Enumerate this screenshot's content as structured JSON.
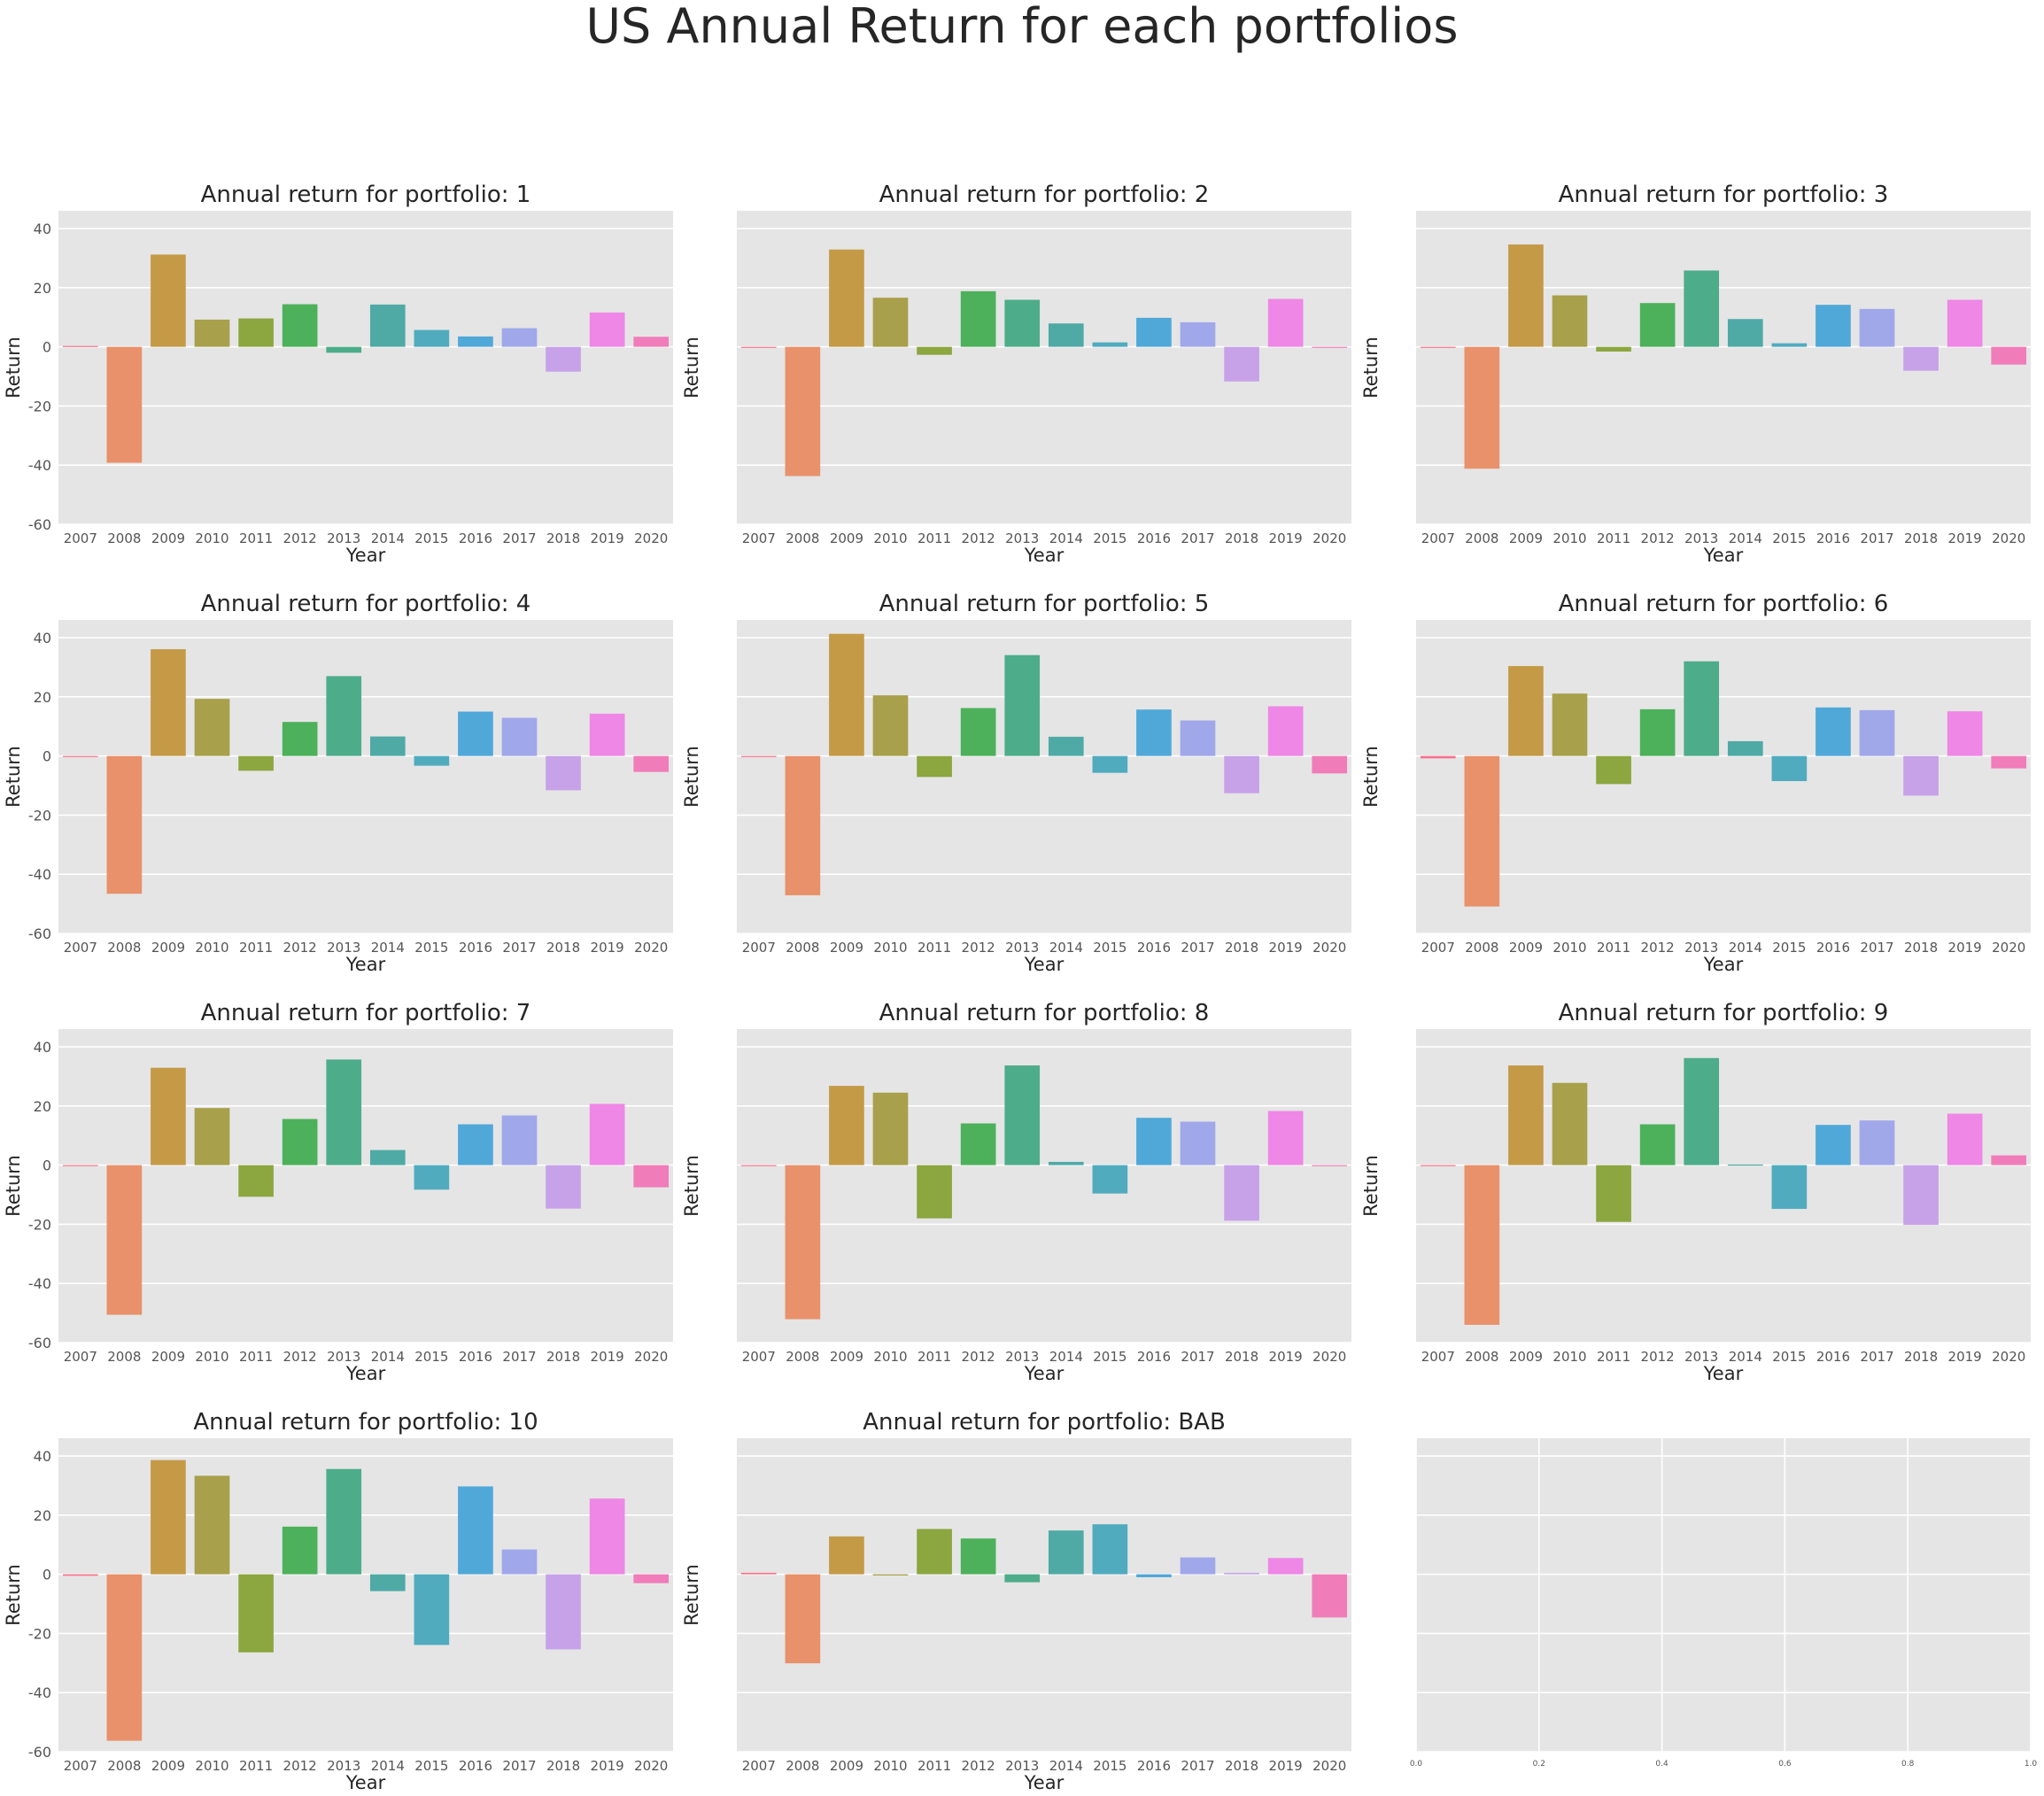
{
  "figure": {
    "title": "US Annual Return for each portfolios"
  },
  "colors": {
    "background": "#E5E5E5",
    "grid": "#FFFFFF",
    "text": "#262626",
    "tick_text": "#555555",
    "bar_palette": [
      "#F77189",
      "#E8916A",
      "#C49A47",
      "#A8A04A",
      "#8CA640",
      "#4CB15A",
      "#4DAC8A",
      "#4FAAA6",
      "#50ABBF",
      "#4FA8D8",
      "#A0A8EA",
      "#C7A2E8",
      "#EE87E5",
      "#F07CBA"
    ]
  },
  "chart_data": [
    {
      "type": "bar",
      "title": "Annual return for portfolio: 1",
      "xlabel": "Year",
      "ylabel": "Return",
      "categories": [
        "2007",
        "2008",
        "2009",
        "2010",
        "2011",
        "2012",
        "2013",
        "2014",
        "2015",
        "2016",
        "2017",
        "2018",
        "2019",
        "2020"
      ],
      "values": [
        0.3,
        -39.2,
        31.2,
        9.2,
        9.6,
        14.4,
        -2.0,
        14.3,
        5.7,
        3.5,
        6.3,
        -8.4,
        11.6,
        3.4
      ],
      "ylim": [
        -60,
        46
      ],
      "yticks": [
        -60,
        -40,
        -20,
        0,
        20,
        40
      ],
      "show_yticks": true,
      "grid": true
    },
    {
      "type": "bar",
      "title": "Annual return for portfolio: 2",
      "xlabel": "Year",
      "ylabel": "Return",
      "categories": [
        "2007",
        "2008",
        "2009",
        "2010",
        "2011",
        "2012",
        "2013",
        "2014",
        "2015",
        "2016",
        "2017",
        "2018",
        "2019",
        "2020"
      ],
      "values": [
        -0.3,
        -43.7,
        32.9,
        16.6,
        -2.7,
        18.8,
        15.9,
        7.9,
        1.5,
        9.8,
        8.3,
        -11.7,
        16.2,
        -0.3
      ],
      "ylim": [
        -60,
        46
      ],
      "yticks": [
        -60,
        -40,
        -20,
        0,
        20,
        40
      ],
      "show_yticks": false,
      "grid": true
    },
    {
      "type": "bar",
      "title": "Annual return for portfolio: 3",
      "xlabel": "Year",
      "ylabel": "Return",
      "categories": [
        "2007",
        "2008",
        "2009",
        "2010",
        "2011",
        "2012",
        "2013",
        "2014",
        "2015",
        "2016",
        "2017",
        "2018",
        "2019",
        "2020"
      ],
      "values": [
        -0.2,
        -41.2,
        34.6,
        17.4,
        -1.6,
        14.8,
        25.8,
        9.4,
        1.2,
        14.2,
        12.8,
        -8.1,
        15.9,
        -6.0
      ],
      "ylim": [
        -60,
        46
      ],
      "yticks": [
        -60,
        -40,
        -20,
        0,
        20,
        40
      ],
      "show_yticks": false,
      "grid": true
    },
    {
      "type": "bar",
      "title": "Annual return for portfolio: 4",
      "xlabel": "Year",
      "ylabel": "Return",
      "categories": [
        "2007",
        "2008",
        "2009",
        "2010",
        "2011",
        "2012",
        "2013",
        "2014",
        "2015",
        "2016",
        "2017",
        "2018",
        "2019",
        "2020"
      ],
      "values": [
        -0.3,
        -46.6,
        36.1,
        19.3,
        -5.0,
        11.5,
        27.0,
        6.6,
        -3.3,
        15.0,
        12.9,
        -11.6,
        14.3,
        -5.4
      ],
      "ylim": [
        -60,
        46
      ],
      "yticks": [
        -60,
        -40,
        -20,
        0,
        20,
        40
      ],
      "show_yticks": true,
      "grid": true
    },
    {
      "type": "bar",
      "title": "Annual return for portfolio: 5",
      "xlabel": "Year",
      "ylabel": "Return",
      "categories": [
        "2007",
        "2008",
        "2009",
        "2010",
        "2011",
        "2012",
        "2013",
        "2014",
        "2015",
        "2016",
        "2017",
        "2018",
        "2019",
        "2020"
      ],
      "values": [
        -0.3,
        -47.1,
        41.3,
        20.5,
        -7.1,
        16.2,
        34.1,
        6.5,
        -5.7,
        15.7,
        12.0,
        -12.6,
        16.8,
        -5.9
      ],
      "ylim": [
        -60,
        46
      ],
      "yticks": [
        -60,
        -40,
        -20,
        0,
        20,
        40
      ],
      "show_yticks": false,
      "grid": true
    },
    {
      "type": "bar",
      "title": "Annual return for portfolio: 6",
      "xlabel": "Year",
      "ylabel": "Return",
      "categories": [
        "2007",
        "2008",
        "2009",
        "2010",
        "2011",
        "2012",
        "2013",
        "2014",
        "2015",
        "2016",
        "2017",
        "2018",
        "2019",
        "2020"
      ],
      "values": [
        -0.8,
        -50.9,
        30.4,
        21.1,
        -9.5,
        15.8,
        32.0,
        5.0,
        -8.5,
        16.4,
        15.5,
        -13.4,
        15.1,
        -4.2
      ],
      "ylim": [
        -60,
        46
      ],
      "yticks": [
        -60,
        -40,
        -20,
        0,
        20,
        40
      ],
      "show_yticks": false,
      "grid": true
    },
    {
      "type": "bar",
      "title": "Annual return for portfolio: 7",
      "xlabel": "Year",
      "ylabel": "Return",
      "categories": [
        "2007",
        "2008",
        "2009",
        "2010",
        "2011",
        "2012",
        "2013",
        "2014",
        "2015",
        "2016",
        "2017",
        "2018",
        "2019",
        "2020"
      ],
      "values": [
        -0.3,
        -50.6,
        32.9,
        19.3,
        -10.7,
        15.6,
        35.7,
        5.1,
        -8.3,
        13.8,
        16.8,
        -14.7,
        20.7,
        -7.5
      ],
      "ylim": [
        -60,
        46
      ],
      "yticks": [
        -60,
        -40,
        -20,
        0,
        20,
        40
      ],
      "show_yticks": true,
      "grid": true
    },
    {
      "type": "bar",
      "title": "Annual return for portfolio: 8",
      "xlabel": "Year",
      "ylabel": "Return",
      "categories": [
        "2007",
        "2008",
        "2009",
        "2010",
        "2011",
        "2012",
        "2013",
        "2014",
        "2015",
        "2016",
        "2017",
        "2018",
        "2019",
        "2020"
      ],
      "values": [
        -0.3,
        -52.1,
        26.8,
        24.5,
        -18.0,
        14.1,
        33.7,
        1.1,
        -9.6,
        16.0,
        14.7,
        -18.8,
        18.3,
        -0.3
      ],
      "ylim": [
        -60,
        46
      ],
      "yticks": [
        -60,
        -40,
        -20,
        0,
        20,
        40
      ],
      "show_yticks": false,
      "grid": true
    },
    {
      "type": "bar",
      "title": "Annual return for portfolio: 9",
      "xlabel": "Year",
      "ylabel": "Return",
      "categories": [
        "2007",
        "2008",
        "2009",
        "2010",
        "2011",
        "2012",
        "2013",
        "2014",
        "2015",
        "2016",
        "2017",
        "2018",
        "2019",
        "2020"
      ],
      "values": [
        -0.3,
        -54.0,
        33.7,
        27.8,
        -19.2,
        13.8,
        36.2,
        0.2,
        -14.8,
        13.6,
        15.1,
        -20.2,
        17.4,
        3.3
      ],
      "ylim": [
        -60,
        46
      ],
      "yticks": [
        -60,
        -40,
        -20,
        0,
        20,
        40
      ],
      "show_yticks": false,
      "grid": true
    },
    {
      "type": "bar",
      "title": "Annual return for portfolio: 10",
      "xlabel": "Year",
      "ylabel": "Return",
      "categories": [
        "2007",
        "2008",
        "2009",
        "2010",
        "2011",
        "2012",
        "2013",
        "2014",
        "2015",
        "2016",
        "2017",
        "2018",
        "2019",
        "2020"
      ],
      "values": [
        -0.5,
        -56.3,
        38.6,
        33.3,
        -26.4,
        16.1,
        35.6,
        -5.7,
        -23.9,
        29.7,
        8.4,
        -25.4,
        25.6,
        -3.0
      ],
      "ylim": [
        -60,
        46
      ],
      "yticks": [
        -60,
        -40,
        -20,
        0,
        20,
        40
      ],
      "show_yticks": true,
      "grid": true
    },
    {
      "type": "bar",
      "title": "Annual return for portfolio: BAB",
      "xlabel": "Year",
      "ylabel": "Return",
      "categories": [
        "2007",
        "2008",
        "2009",
        "2010",
        "2011",
        "2012",
        "2013",
        "2014",
        "2015",
        "2016",
        "2017",
        "2018",
        "2019",
        "2020"
      ],
      "values": [
        0.5,
        -30.1,
        12.8,
        -0.4,
        15.3,
        12.1,
        -2.7,
        14.8,
        16.9,
        -1.0,
        5.7,
        0.5,
        5.5,
        -14.6
      ],
      "ylim": [
        -60,
        46
      ],
      "yticks": [
        -60,
        -40,
        -20,
        0,
        20,
        40
      ],
      "show_yticks": false,
      "grid": true
    },
    {
      "type": "empty",
      "title": "",
      "xlim": [
        0,
        1
      ],
      "ylim": [
        -60,
        46
      ],
      "xticks": [
        "0.0",
        "0.2",
        "0.4",
        "0.6",
        "0.8",
        "1.0"
      ],
      "yticks": [
        -60,
        -40,
        -20,
        0,
        20,
        40
      ],
      "show_yticks": false,
      "grid": true
    }
  ]
}
